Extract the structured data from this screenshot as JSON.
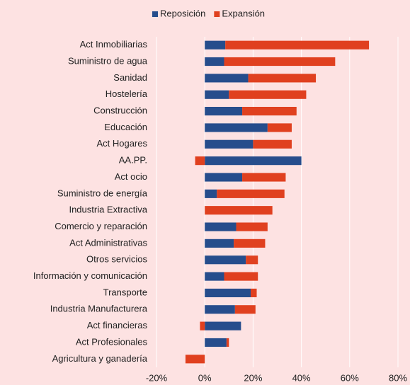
{
  "chart_data": {
    "type": "stacked_barh",
    "categories": [
      "Act Inmobiliarias",
      "Suministro de agua",
      "Sanidad",
      "Hostelería",
      "Construcción",
      "Educación",
      "Act Hogares",
      "AA.PP.",
      "Act ocio",
      "Suministro de energía",
      "Industria Extractiva",
      "Comercio y reparación",
      "Act Administrativas",
      "Otros servicios",
      "Información y comunicación",
      "Transporte",
      "Industria Manufacturera",
      "Act financieras",
      "Act Profesionales",
      "Agricultura y ganadería"
    ],
    "series": [
      {
        "name": "Reposición",
        "color": "#264d8c",
        "values": [
          8.5,
          8,
          18,
          10,
          15.5,
          26,
          20,
          40,
          15.5,
          5,
          0,
          13,
          12,
          17,
          8,
          19,
          12.5,
          15,
          9,
          0
        ]
      },
      {
        "name": "Expansión",
        "color": "#e0401f",
        "values": [
          59.5,
          46,
          28,
          32,
          22.5,
          10,
          16,
          -4,
          18,
          28,
          28,
          13,
          13,
          5,
          14,
          2.5,
          8.5,
          -2,
          1,
          -8
        ]
      }
    ],
    "xlim": [
      -20,
      80
    ],
    "xticks": [
      {
        "value": -20,
        "label": "-20%"
      },
      {
        "value": 0,
        "label": "0%"
      },
      {
        "value": 20,
        "label": "20%"
      },
      {
        "value": 40,
        "label": "40%"
      },
      {
        "value": 60,
        "label": "60%"
      },
      {
        "value": 80,
        "label": "80%"
      }
    ],
    "grid": true,
    "legend": "top"
  }
}
